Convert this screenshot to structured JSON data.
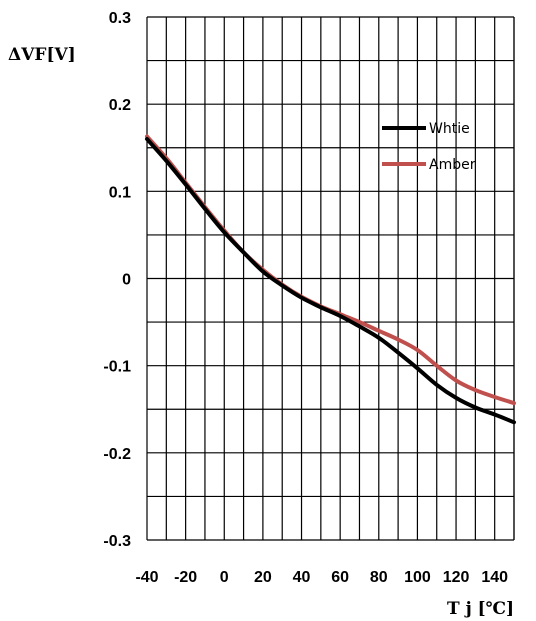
{
  "chart_data": {
    "type": "line",
    "ylabel": "ΔVF[V]",
    "xlabel": "T j [℃]",
    "xlim": [
      -40,
      150
    ],
    "ylim": [
      -0.3,
      0.3
    ],
    "x_ticks": [
      "-40",
      "-20",
      "0",
      "20",
      "40",
      "60",
      "80",
      "100",
      "120",
      "140"
    ],
    "y_ticks": [
      "0.3",
      "0.2",
      "0.1",
      "0",
      "-0.1",
      "-0.2",
      "-0.3"
    ],
    "grid": true,
    "legend_position": "top-right",
    "series": [
      {
        "name": "Whtie",
        "color": "#000000",
        "x": [
          -40,
          -30,
          -20,
          -10,
          0,
          10,
          20,
          30,
          40,
          50,
          60,
          70,
          80,
          90,
          100,
          110,
          120,
          130,
          140,
          150
        ],
        "y": [
          0.16,
          0.135,
          0.108,
          0.08,
          0.053,
          0.03,
          0.008,
          -0.008,
          -0.022,
          -0.033,
          -0.043,
          -0.055,
          -0.068,
          -0.085,
          -0.103,
          -0.122,
          -0.137,
          -0.148,
          -0.156,
          -0.165
        ]
      },
      {
        "name": "Amber",
        "color": "#c0504d",
        "x": [
          -40,
          -30,
          -20,
          -10,
          0,
          10,
          20,
          30,
          40,
          50,
          60,
          70,
          80,
          90,
          100,
          110,
          120,
          130,
          140,
          150
        ],
        "y": [
          0.163,
          0.138,
          0.11,
          0.082,
          0.055,
          0.03,
          0.01,
          -0.007,
          -0.021,
          -0.032,
          -0.041,
          -0.05,
          -0.06,
          -0.07,
          -0.082,
          -0.1,
          -0.117,
          -0.128,
          -0.136,
          -0.143
        ]
      }
    ]
  }
}
